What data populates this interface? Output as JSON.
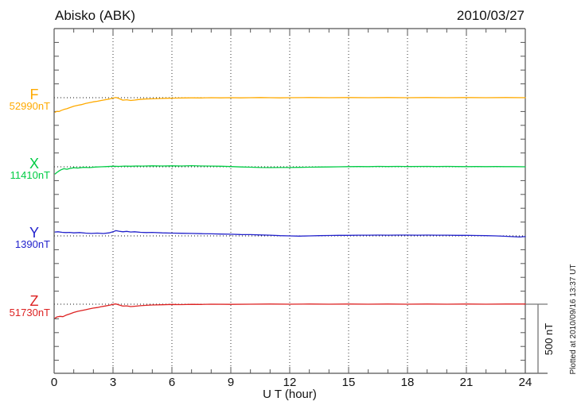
{
  "chart_data": {
    "type": "line",
    "title": "Abisko (ABK)",
    "date_label": "2010/03/27",
    "xlabel": "U T (hour)",
    "x_range": [
      0,
      24
    ],
    "x_ticks": [
      0,
      3,
      6,
      9,
      12,
      15,
      18,
      21,
      24
    ],
    "grid": "dotted vertical lines every 3 hours; dotted horizontal baseline for each component",
    "scale_bar": {
      "label": "500 nT",
      "nT": 500
    },
    "footer": "Plotted at 2010/09/16 13:37 UT",
    "series": [
      {
        "name": "F",
        "baseline_label": "52990nT",
        "baseline_nT": 52990,
        "color": "#ffaa00",
        "points": [
          [
            0.05,
            -105
          ],
          [
            0.15,
            -98
          ],
          [
            0.25,
            -100
          ],
          [
            0.35,
            -93
          ],
          [
            0.5,
            -85
          ],
          [
            0.65,
            -80
          ],
          [
            0.8,
            -72
          ],
          [
            1,
            -62
          ],
          [
            1.2,
            -55
          ],
          [
            1.4,
            -50
          ],
          [
            1.6,
            -42
          ],
          [
            1.8,
            -36
          ],
          [
            2,
            -30
          ],
          [
            2.2,
            -26
          ],
          [
            2.4,
            -20
          ],
          [
            2.6,
            -15
          ],
          [
            2.8,
            -10
          ],
          [
            3,
            -3
          ],
          [
            3.15,
            2
          ],
          [
            3.3,
            -6
          ],
          [
            3.5,
            -18
          ],
          [
            3.7,
            -15
          ],
          [
            3.9,
            -20
          ],
          [
            4.1,
            -17
          ],
          [
            4.3,
            -13
          ],
          [
            4.6,
            -10
          ],
          [
            5,
            -8
          ],
          [
            5.4,
            -6
          ],
          [
            5.8,
            -4
          ],
          [
            6.2,
            -3
          ],
          [
            6.6,
            -2
          ],
          [
            7,
            -1
          ],
          [
            7.5,
            -2
          ],
          [
            8,
            0
          ],
          [
            8.5,
            -1
          ],
          [
            9,
            0
          ],
          [
            9.5,
            -1
          ],
          [
            10,
            0
          ],
          [
            10.5,
            1
          ],
          [
            11,
            0
          ],
          [
            11.5,
            -1
          ],
          [
            12,
            0
          ],
          [
            13,
            1
          ],
          [
            14,
            0
          ],
          [
            15,
            1
          ],
          [
            16,
            0
          ],
          [
            17,
            1
          ],
          [
            18,
            0
          ],
          [
            19,
            1
          ],
          [
            20,
            0
          ],
          [
            21,
            1
          ],
          [
            22,
            0
          ],
          [
            23,
            1
          ],
          [
            24,
            0
          ]
        ]
      },
      {
        "name": "X",
        "baseline_label": "11410nT",
        "baseline_nT": 11410,
        "color": "#00cc44",
        "points": [
          [
            0.05,
            -52
          ],
          [
            0.15,
            -40
          ],
          [
            0.25,
            -30
          ],
          [
            0.35,
            -22
          ],
          [
            0.5,
            -14
          ],
          [
            0.65,
            -18
          ],
          [
            0.8,
            -12
          ],
          [
            1,
            -7
          ],
          [
            1.2,
            -9
          ],
          [
            1.5,
            -4
          ],
          [
            1.8,
            -6
          ],
          [
            2.1,
            -2
          ],
          [
            2.4,
            0
          ],
          [
            2.7,
            2
          ],
          [
            3,
            4
          ],
          [
            3.3,
            3
          ],
          [
            3.6,
            5
          ],
          [
            3.9,
            4
          ],
          [
            4.2,
            6
          ],
          [
            4.5,
            5
          ],
          [
            5,
            7
          ],
          [
            5.5,
            6
          ],
          [
            6,
            7
          ],
          [
            6.5,
            6
          ],
          [
            7,
            8
          ],
          [
            7.5,
            6
          ],
          [
            8,
            5
          ],
          [
            8.5,
            4
          ],
          [
            9,
            2
          ],
          [
            9.5,
            -1
          ],
          [
            10,
            -3
          ],
          [
            10.5,
            -5
          ],
          [
            11,
            -6
          ],
          [
            11.5,
            -5
          ],
          [
            12,
            -5
          ],
          [
            12.5,
            -4
          ],
          [
            13,
            -3
          ],
          [
            13.5,
            -2
          ],
          [
            14,
            -1
          ],
          [
            14.5,
            0
          ],
          [
            15,
            1
          ],
          [
            15.5,
            2
          ],
          [
            16,
            1
          ],
          [
            16.5,
            3
          ],
          [
            17,
            2
          ],
          [
            17.5,
            3
          ],
          [
            18,
            2
          ],
          [
            19,
            3
          ],
          [
            19.5,
            2
          ],
          [
            20,
            3
          ],
          [
            20.5,
            2
          ],
          [
            21,
            1
          ],
          [
            21.5,
            2
          ],
          [
            22,
            1
          ],
          [
            22.5,
            2
          ],
          [
            23,
            1
          ],
          [
            23.5,
            1
          ],
          [
            24,
            0
          ]
        ]
      },
      {
        "name": "Y",
        "baseline_label": "1390nT",
        "baseline_nT": 1390,
        "color": "#2222cc",
        "points": [
          [
            0.05,
            28
          ],
          [
            0.2,
            30
          ],
          [
            0.4,
            26
          ],
          [
            0.6,
            24
          ],
          [
            0.8,
            25
          ],
          [
            1,
            22
          ],
          [
            1.3,
            24
          ],
          [
            1.6,
            20
          ],
          [
            1.9,
            18
          ],
          [
            2.2,
            20
          ],
          [
            2.5,
            17
          ],
          [
            2.8,
            22
          ],
          [
            3,
            30
          ],
          [
            3.15,
            38
          ],
          [
            3.3,
            34
          ],
          [
            3.5,
            30
          ],
          [
            3.7,
            33
          ],
          [
            3.9,
            28
          ],
          [
            4.1,
            30
          ],
          [
            4.4,
            26
          ],
          [
            4.7,
            24
          ],
          [
            5,
            25
          ],
          [
            5.5,
            22
          ],
          [
            6,
            20
          ],
          [
            6.5,
            19
          ],
          [
            7,
            18
          ],
          [
            7.5,
            16
          ],
          [
            8,
            15
          ],
          [
            8.5,
            13
          ],
          [
            9,
            12
          ],
          [
            9.5,
            10
          ],
          [
            10,
            9
          ],
          [
            10.5,
            7
          ],
          [
            11,
            5
          ],
          [
            11.5,
            2
          ],
          [
            12,
            0
          ],
          [
            12.5,
            -2
          ],
          [
            13,
            0
          ],
          [
            13.5,
            2
          ],
          [
            14,
            3
          ],
          [
            14.5,
            4
          ],
          [
            15,
            4
          ],
          [
            15.5,
            5
          ],
          [
            16,
            5
          ],
          [
            16.5,
            6
          ],
          [
            17,
            5
          ],
          [
            17.5,
            6
          ],
          [
            18,
            6
          ],
          [
            18.5,
            5
          ],
          [
            19,
            6
          ],
          [
            19.5,
            5
          ],
          [
            20,
            5
          ],
          [
            20.5,
            4
          ],
          [
            21,
            4
          ],
          [
            21.5,
            3
          ],
          [
            22,
            2
          ],
          [
            22.5,
            0
          ],
          [
            23,
            -3
          ],
          [
            23.4,
            -6
          ],
          [
            23.7,
            -8
          ],
          [
            24,
            -5
          ]
        ]
      },
      {
        "name": "Z",
        "baseline_label": "51730nT",
        "baseline_nT": 51730,
        "color": "#dd2222",
        "points": [
          [
            0.05,
            -100
          ],
          [
            0.15,
            -92
          ],
          [
            0.3,
            -88
          ],
          [
            0.45,
            -90
          ],
          [
            0.6,
            -80
          ],
          [
            0.8,
            -70
          ],
          [
            1,
            -60
          ],
          [
            1.2,
            -52
          ],
          [
            1.4,
            -46
          ],
          [
            1.6,
            -40
          ],
          [
            1.8,
            -34
          ],
          [
            2,
            -28
          ],
          [
            2.2,
            -24
          ],
          [
            2.4,
            -18
          ],
          [
            2.6,
            -13
          ],
          [
            2.8,
            -8
          ],
          [
            3,
            -1
          ],
          [
            3.15,
            2
          ],
          [
            3.3,
            -5
          ],
          [
            3.5,
            -14
          ],
          [
            3.7,
            -12
          ],
          [
            3.9,
            -17
          ],
          [
            4.1,
            -15
          ],
          [
            4.4,
            -11
          ],
          [
            4.7,
            -8
          ],
          [
            5,
            -6
          ],
          [
            5.5,
            -4
          ],
          [
            6,
            -2
          ],
          [
            6.5,
            -3
          ],
          [
            7,
            -1
          ],
          [
            7.5,
            -2
          ],
          [
            8,
            0
          ],
          [
            9,
            -1
          ],
          [
            10,
            0
          ],
          [
            11,
            1
          ],
          [
            12,
            0
          ],
          [
            13,
            1
          ],
          [
            14,
            0
          ],
          [
            15,
            1
          ],
          [
            16,
            0
          ],
          [
            17,
            1
          ],
          [
            18,
            0
          ],
          [
            19,
            1
          ],
          [
            20,
            0
          ],
          [
            21,
            1
          ],
          [
            22,
            0
          ],
          [
            23,
            1
          ],
          [
            24,
            1
          ]
        ]
      }
    ]
  }
}
